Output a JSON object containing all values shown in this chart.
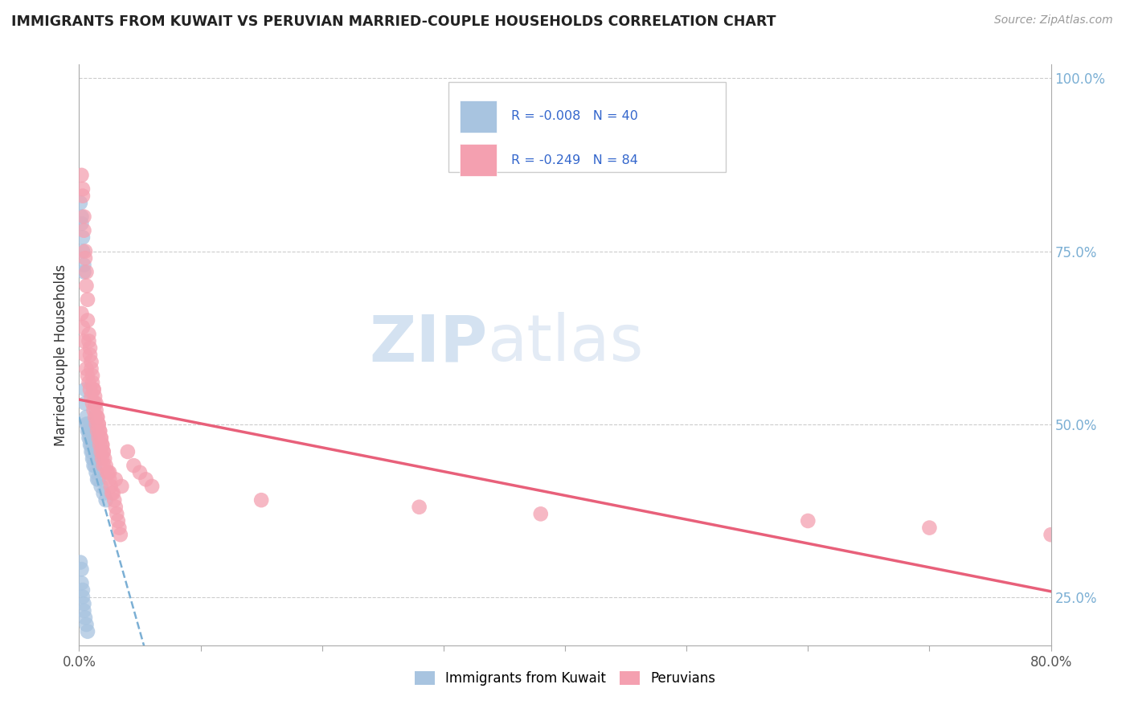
{
  "title": "IMMIGRANTS FROM KUWAIT VS PERUVIAN MARRIED-COUPLE HOUSEHOLDS CORRELATION CHART",
  "source_text": "Source: ZipAtlas.com",
  "ylabel": "Married-couple Households",
  "xlim": [
    0.0,
    0.8
  ],
  "ylim": [
    0.18,
    1.02
  ],
  "x_ticks": [
    0.0,
    0.1,
    0.2,
    0.3,
    0.4,
    0.5,
    0.6,
    0.7,
    0.8
  ],
  "x_tick_labels": [
    "0.0%",
    "",
    "",
    "",
    "",
    "",
    "",
    "",
    "80.0%"
  ],
  "y_ticks_right": [
    0.25,
    0.5,
    0.75,
    1.0
  ],
  "y_tick_labels_right": [
    "25.0%",
    "50.0%",
    "75.0%",
    "100.0%"
  ],
  "legend_bottom": [
    "Immigrants from Kuwait",
    "Peruvians"
  ],
  "blue_color": "#a8c4e0",
  "pink_color": "#f4a0b0",
  "trend_blue_color": "#7bafd4",
  "trend_pink_color": "#e8607a",
  "watermark_text": "ZIPatlas",
  "watermark_color": "#ccdaec",
  "background_color": "#ffffff",
  "grid_color": "#cccccc",
  "blue_x": [
    0.001,
    0.002,
    0.002,
    0.003,
    0.003,
    0.004,
    0.004,
    0.005,
    0.005,
    0.006,
    0.006,
    0.007,
    0.007,
    0.008,
    0.008,
    0.009,
    0.009,
    0.01,
    0.01,
    0.011,
    0.011,
    0.012,
    0.012,
    0.013,
    0.014,
    0.015,
    0.016,
    0.018,
    0.02,
    0.022,
    0.001,
    0.002,
    0.002,
    0.003,
    0.003,
    0.004,
    0.004,
    0.005,
    0.006,
    0.007
  ],
  "blue_y": [
    0.82,
    0.8,
    0.79,
    0.77,
    0.75,
    0.73,
    0.72,
    0.55,
    0.53,
    0.51,
    0.5,
    0.5,
    0.49,
    0.49,
    0.48,
    0.48,
    0.47,
    0.47,
    0.46,
    0.46,
    0.45,
    0.45,
    0.44,
    0.44,
    0.43,
    0.42,
    0.42,
    0.41,
    0.4,
    0.39,
    0.3,
    0.29,
    0.27,
    0.26,
    0.25,
    0.24,
    0.23,
    0.22,
    0.21,
    0.2
  ],
  "pink_x": [
    0.002,
    0.003,
    0.003,
    0.004,
    0.004,
    0.005,
    0.005,
    0.006,
    0.006,
    0.007,
    0.007,
    0.008,
    0.008,
    0.009,
    0.009,
    0.01,
    0.01,
    0.011,
    0.011,
    0.012,
    0.012,
    0.013,
    0.013,
    0.014,
    0.014,
    0.015,
    0.015,
    0.016,
    0.016,
    0.017,
    0.017,
    0.018,
    0.018,
    0.019,
    0.019,
    0.02,
    0.02,
    0.021,
    0.022,
    0.023,
    0.024,
    0.025,
    0.026,
    0.027,
    0.028,
    0.029,
    0.03,
    0.031,
    0.032,
    0.033,
    0.034,
    0.04,
    0.045,
    0.05,
    0.055,
    0.06,
    0.002,
    0.003,
    0.004,
    0.005,
    0.006,
    0.007,
    0.008,
    0.009,
    0.01,
    0.011,
    0.012,
    0.013,
    0.014,
    0.015,
    0.016,
    0.017,
    0.018,
    0.019,
    0.02,
    0.025,
    0.03,
    0.035,
    0.15,
    0.28,
    0.38,
    0.6,
    0.7,
    0.8
  ],
  "pink_y": [
    0.86,
    0.84,
    0.83,
    0.8,
    0.78,
    0.75,
    0.74,
    0.72,
    0.7,
    0.68,
    0.65,
    0.63,
    0.62,
    0.61,
    0.6,
    0.59,
    0.58,
    0.57,
    0.56,
    0.55,
    0.55,
    0.54,
    0.53,
    0.53,
    0.52,
    0.51,
    0.51,
    0.5,
    0.5,
    0.49,
    0.49,
    0.48,
    0.48,
    0.47,
    0.47,
    0.46,
    0.46,
    0.45,
    0.44,
    0.43,
    0.43,
    0.42,
    0.41,
    0.4,
    0.4,
    0.39,
    0.38,
    0.37,
    0.36,
    0.35,
    0.34,
    0.46,
    0.44,
    0.43,
    0.42,
    0.41,
    0.66,
    0.64,
    0.62,
    0.6,
    0.58,
    0.57,
    0.56,
    0.55,
    0.54,
    0.53,
    0.52,
    0.51,
    0.5,
    0.49,
    0.48,
    0.47,
    0.46,
    0.45,
    0.44,
    0.43,
    0.42,
    0.41,
    0.39,
    0.38,
    0.37,
    0.36,
    0.35,
    0.34
  ]
}
